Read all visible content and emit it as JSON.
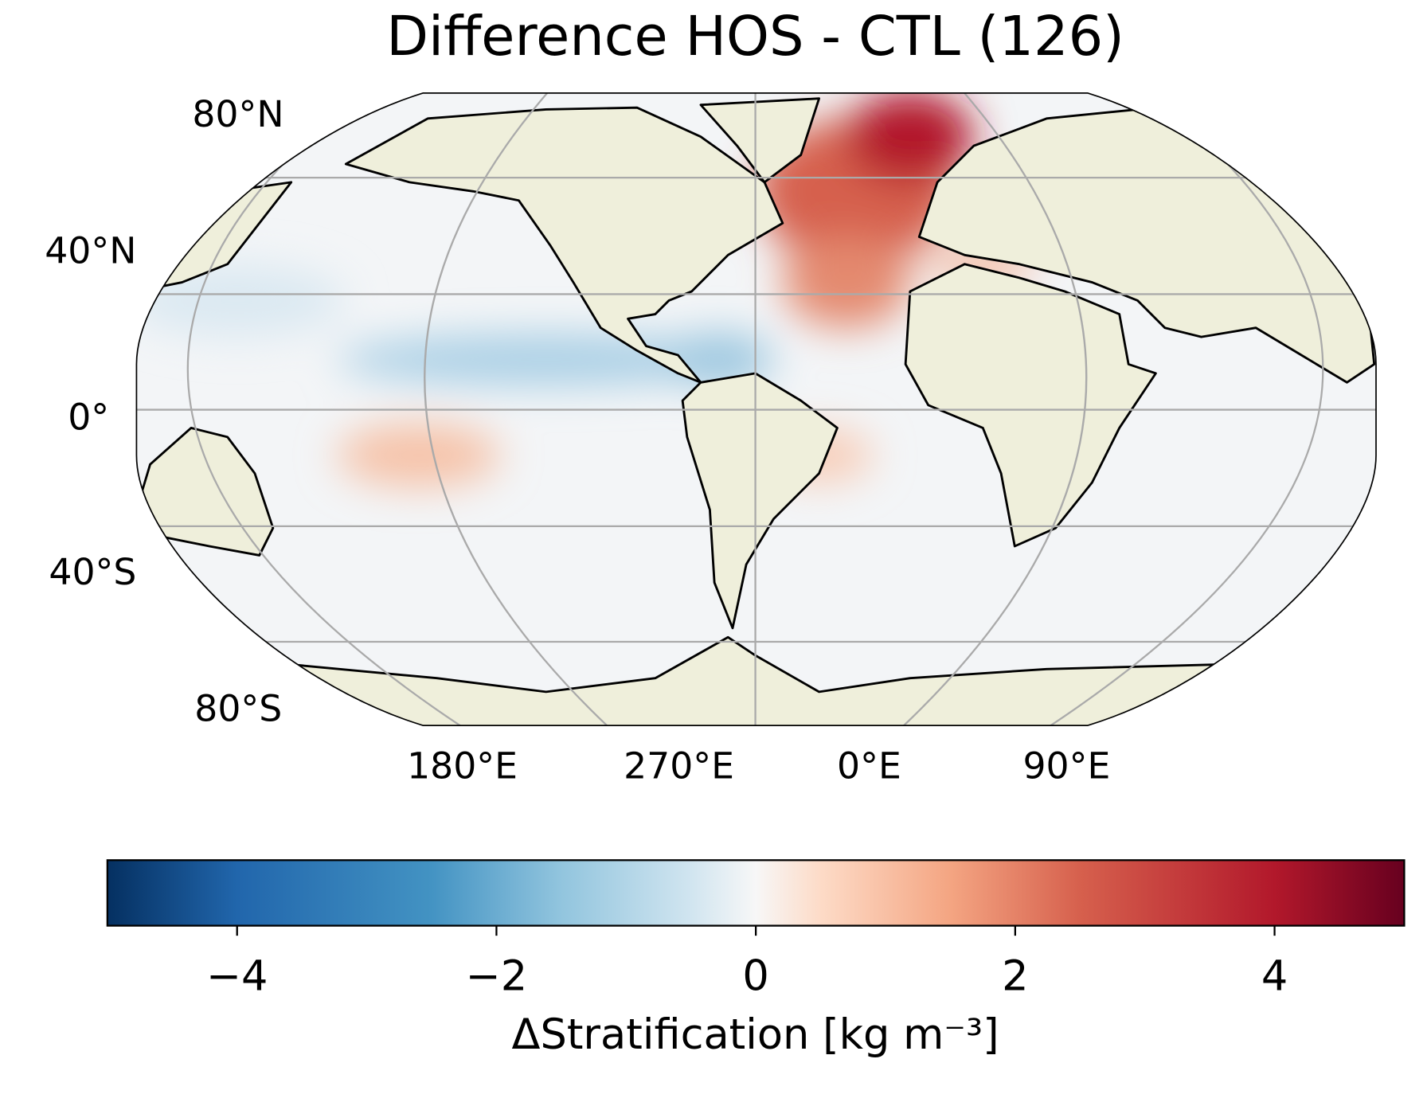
{
  "chart_data": {
    "type": "map",
    "title": "Difference HOS - CTL (126)",
    "lat_labels": [
      "80°N",
      "40°N",
      "0°",
      "40°S",
      "80°S"
    ],
    "lon_labels": [
      "180°E",
      "270°E",
      "0°E",
      "90°E"
    ],
    "colorbar": {
      "lim": [
        -5,
        5
      ],
      "ticks": [
        {
          "value": -4,
          "label": "−4"
        },
        {
          "value": -2,
          "label": "−2"
        },
        0,
        2,
        4
      ],
      "label": "ΔStratification [kg m⁻³]"
    }
  }
}
